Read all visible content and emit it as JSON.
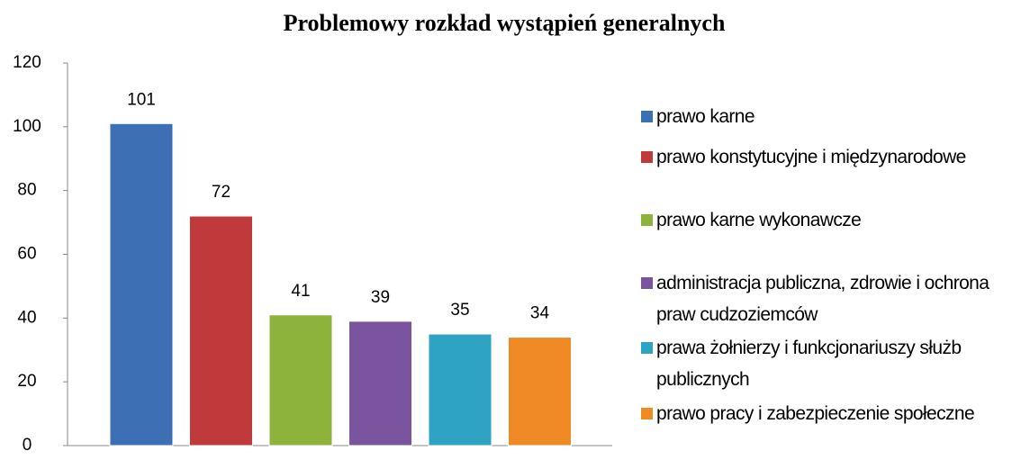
{
  "chart_data": {
    "type": "bar",
    "title": "Problemowy rozkład wystąpień generalnych",
    "categories": [
      "prawo karne",
      "prawo konstytucyjne i międzynarodowe",
      "prawo karne wykonawcze",
      "administracja publiczna, zdrowie i ochrona praw  cudzoziemców",
      "prawa żołnierzy i funkcjonariuszy służb publicznych",
      "prawo pracy i zabezpieczenie społeczne"
    ],
    "values": [
      101,
      72,
      41,
      39,
      35,
      34
    ],
    "colors": [
      "#3d6fb5",
      "#c0393b",
      "#8db33c",
      "#7a549e",
      "#2fa3c4",
      "#f08a24"
    ],
    "ylim": [
      0,
      120
    ],
    "yticks": [
      0,
      20,
      40,
      60,
      80,
      100,
      120
    ],
    "legend": "right"
  }
}
